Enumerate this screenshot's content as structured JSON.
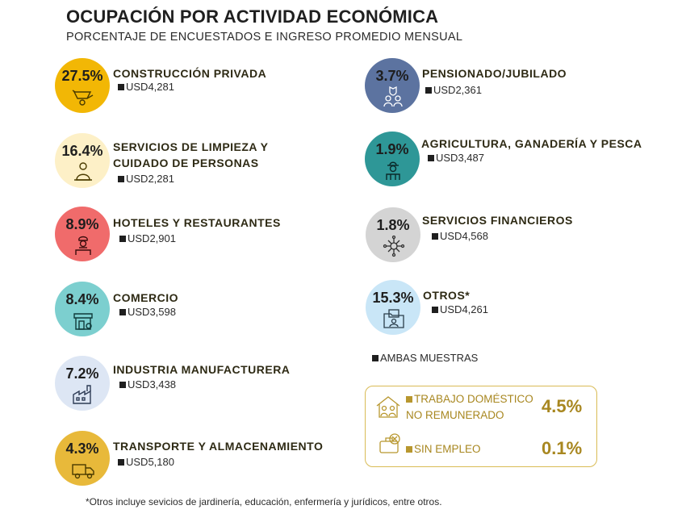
{
  "header": {
    "title": "OCUPACIÓN POR ACTIVIDAD ECONÓMICA",
    "subtitle": "PORCENTAJE DE ENCUESTADOS E INGRESO PROMEDIO MENSUAL"
  },
  "left_items": [
    {
      "pct": "27.5%",
      "label": "CONSTRUCCIÓN PRIVADA",
      "income": "USD4,281",
      "color": "#f2b705",
      "icon": "wheelbarrow-icon"
    },
    {
      "pct": "16.4%",
      "label_line1": "SERVICIOS DE LIMPIEZA Y",
      "label_line2": "CUIDADO DE PERSONAS",
      "income": "USD2,281",
      "color": "#fdf0c7",
      "icon": "cleaner-icon"
    },
    {
      "pct": "8.9%",
      "label": "HOTELES Y RESTAURANTES",
      "income": "USD2,901",
      "color": "#f06b6b",
      "icon": "chef-icon"
    },
    {
      "pct": "8.4%",
      "label": "COMERCIO",
      "income": "USD3,598",
      "color": "#7ccfcf",
      "icon": "store-icon"
    },
    {
      "pct": "7.2%",
      "label": "INDUSTRIA MANUFACTURERA",
      "income": "USD3,438",
      "color": "#dde6f4",
      "icon": "factory-icon"
    },
    {
      "pct": "4.3%",
      "label": "TRANSPORTE Y ALMACENAMIENTO",
      "income": "USD5,180",
      "color": "#e8b93a",
      "icon": "truck-icon"
    }
  ],
  "right_items": [
    {
      "pct": "3.7%",
      "label": "PENSIONADO/JUBILADO",
      "income": "USD2,361",
      "color": "#5c73a0",
      "icon": "retirees-icon"
    },
    {
      "pct": "1.9%",
      "label": "AGRICULTURA, GANADERÍA Y PESCA",
      "income": "USD3,487",
      "color": "#2e9797",
      "icon": "farmer-icon"
    },
    {
      "pct": "1.8%",
      "label": "SERVICIOS FINANCIEROS",
      "income": "USD4,568",
      "color": "#d4d4d4",
      "icon": "finance-network-icon"
    },
    {
      "pct": "15.3%",
      "label": "OTROS*",
      "income": "USD4,261",
      "color": "#c9e6f7",
      "icon": "folder-person-icon"
    }
  ],
  "legend": {
    "label": "AMBAS MUESTRAS"
  },
  "summary_box": {
    "row1": {
      "label_line1": "TRABAJO DOMÉSTICO",
      "label_line2": "NO REMUNERADO",
      "value": "4.5%",
      "icon": "household-icon"
    },
    "row2": {
      "label": "SIN EMPLEO",
      "value": "0.1%",
      "icon": "unemployed-icon"
    },
    "accent_color": "#b8972f"
  },
  "footnote": "*Otros incluye sevicios de jardinería, educación, enfermería y jurídicos, entre otros."
}
